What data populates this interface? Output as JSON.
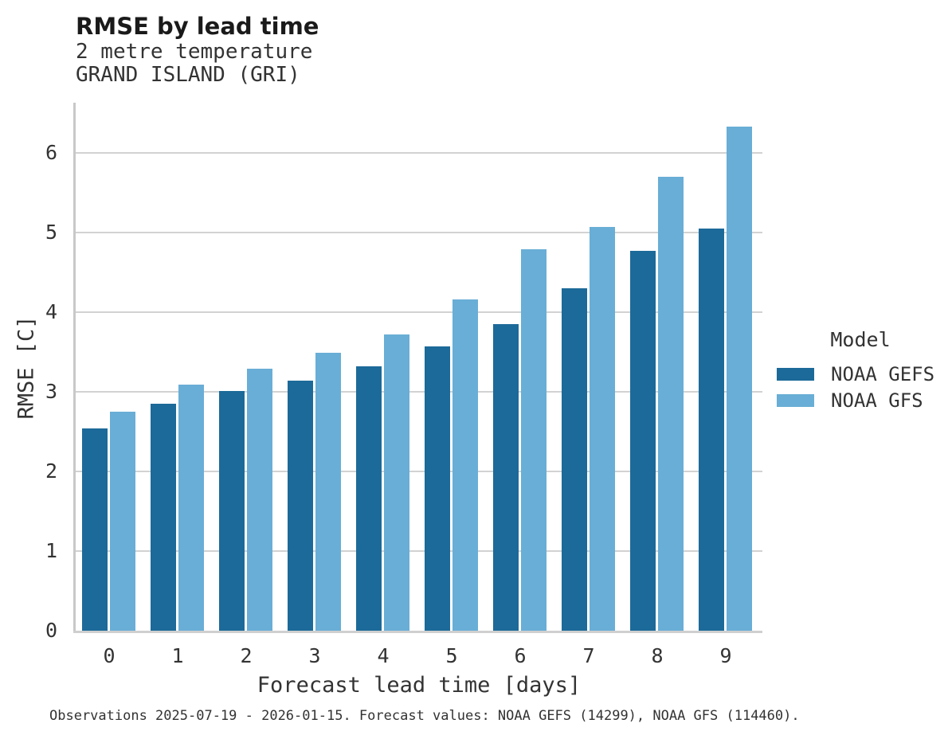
{
  "chart_data": {
    "type": "bar",
    "title": "RMSE by lead time",
    "subtitle_line1": "2 metre temperature",
    "subtitle_line2": "GRAND ISLAND (GRI)",
    "categories": [
      "0",
      "1",
      "2",
      "3",
      "4",
      "5",
      "6",
      "7",
      "8",
      "9"
    ],
    "series": [
      {
        "name": "NOAA GEFS",
        "color": "#1c6a99",
        "values": [
          2.54,
          2.85,
          3.01,
          3.14,
          3.32,
          3.57,
          3.85,
          4.3,
          4.77,
          5.05
        ]
      },
      {
        "name": "NOAA GFS",
        "color": "#69aed6",
        "values": [
          2.75,
          3.09,
          3.29,
          3.49,
          3.72,
          4.16,
          4.79,
          5.07,
          5.7,
          6.33
        ]
      }
    ],
    "xlabel": "Forecast lead time [days]",
    "ylabel": "RMSE [C]",
    "ylim": [
      0,
      6.63
    ],
    "yticks": [
      0,
      1,
      2,
      3,
      4,
      5,
      6
    ],
    "grid": "horizontal",
    "legend_title": "Model",
    "legend_position": "right"
  },
  "caption": "Observations 2025-07-19 - 2026-01-15. Forecast values: NOAA GEFS (14299), NOAA GFS (114460)."
}
